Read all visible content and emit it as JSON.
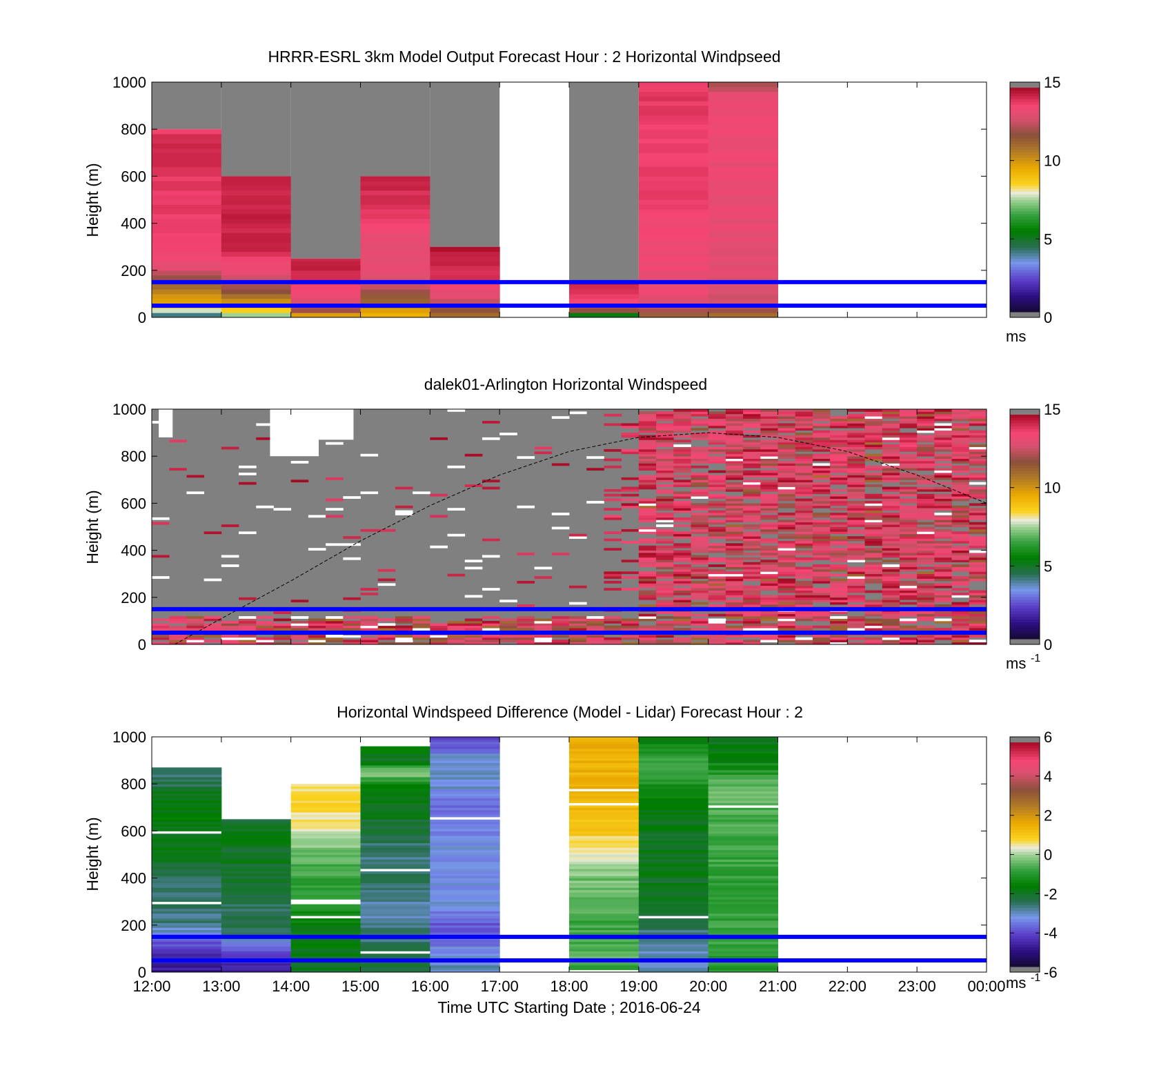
{
  "figure": {
    "xlabel": "Time UTC  Starting Date ; 2016-06-24",
    "xticks": [
      "12:00",
      "13:00",
      "14:00",
      "15:00",
      "16:00",
      "17:00",
      "18:00",
      "19:00",
      "20:00",
      "21:00",
      "22:00",
      "23:00",
      "00:00"
    ],
    "reference_lines_m": [
      50,
      150
    ],
    "reference_line_color": "#0000ff",
    "nodata_color": "#808080"
  },
  "chart_data": [
    {
      "type": "heatmap",
      "title": "HRRR-ESRL 3km Model Output   Forecast Hour : 2 Horizontal Windpseed",
      "ylabel": "Height (m)",
      "xlabel": "",
      "ylim": [
        0,
        1000
      ],
      "yticks": [
        "0",
        "200",
        "400",
        "600",
        "800",
        "1000"
      ],
      "colorbar": {
        "min": 0,
        "max": 15,
        "ticks": [
          "0",
          "5",
          "10",
          "15"
        ],
        "unit": "ms"
      },
      "bins_hours": [
        12,
        13,
        14,
        15,
        16,
        17,
        18,
        19,
        20
      ],
      "columns": [
        {
          "hour": 12,
          "top": 800,
          "profile": [
            [
              0,
              3
            ],
            [
              20,
              5
            ],
            [
              35,
              9
            ],
            [
              60,
              9.5
            ],
            [
              100,
              10.5
            ],
            [
              130,
              11
            ],
            [
              160,
              12
            ],
            [
              200,
              13
            ],
            [
              240,
              13.5
            ],
            [
              300,
              14
            ],
            [
              450,
              14
            ],
            [
              600,
              14
            ],
            [
              700,
              14.5
            ],
            [
              800,
              14
            ]
          ]
        },
        {
          "hour": 13,
          "top": 600,
          "profile": [
            [
              0,
              7
            ],
            [
              20,
              8
            ],
            [
              60,
              10
            ],
            [
              100,
              11.5
            ],
            [
              150,
              12.5
            ],
            [
              200,
              13.5
            ],
            [
              260,
              14
            ],
            [
              300,
              14.5
            ],
            [
              400,
              14.5
            ],
            [
              600,
              14.5
            ]
          ]
        },
        {
          "hour": 14,
          "top": 250,
          "profile": [
            [
              0,
              9
            ],
            [
              30,
              12
            ],
            [
              60,
              13
            ],
            [
              100,
              13.5
            ],
            [
              140,
              14
            ],
            [
              200,
              14.5
            ],
            [
              250,
              14.5
            ]
          ]
        },
        {
          "hour": 15,
          "top": 600,
          "profile": [
            [
              0,
              9
            ],
            [
              30,
              10
            ],
            [
              60,
              11
            ],
            [
              100,
              12
            ],
            [
              150,
              13
            ],
            [
              200,
              13.5
            ],
            [
              300,
              13.2
            ],
            [
              400,
              13.8
            ],
            [
              500,
              14.3
            ],
            [
              600,
              14.5
            ]
          ]
        },
        {
          "hour": 16,
          "top": 300,
          "profile": [
            [
              0,
              11
            ],
            [
              40,
              12
            ],
            [
              80,
              13
            ],
            [
              150,
              14
            ],
            [
              220,
              14.5
            ],
            [
              300,
              14.8
            ]
          ]
        },
        {
          "hour": 17,
          "top": null,
          "profile": []
        },
        {
          "hour": 18,
          "top": 150,
          "profile": [
            [
              0,
              2
            ],
            [
              30,
              12
            ],
            [
              80,
              14
            ],
            [
              150,
              14.5
            ]
          ]
        },
        {
          "hour": 19,
          "top": 1000,
          "profile": [
            [
              0,
              11
            ],
            [
              50,
              13
            ],
            [
              100,
              13.5
            ],
            [
              200,
              13.5
            ],
            [
              400,
              13.8
            ],
            [
              600,
              14
            ],
            [
              800,
              14
            ],
            [
              1000,
              14
            ]
          ]
        },
        {
          "hour": 20,
          "top": 1000,
          "profile": [
            [
              0,
              11
            ],
            [
              50,
              12.5
            ],
            [
              100,
              13
            ],
            [
              300,
              13.3
            ],
            [
              600,
              13.5
            ],
            [
              800,
              13.6
            ],
            [
              900,
              13.5
            ],
            [
              950,
              13.2
            ],
            [
              1000,
              12
            ]
          ]
        }
      ]
    },
    {
      "type": "heatmap",
      "title": "dalek01-Arlington  Horizontal Windspeed",
      "ylabel": "Height (m)",
      "xlabel": "",
      "ylim": [
        0,
        1000
      ],
      "yticks": [
        "0",
        "200",
        "400",
        "600",
        "800",
        "1000"
      ],
      "colorbar": {
        "min": 0,
        "max": 15,
        "ticks": [
          "0",
          "5",
          "10",
          "15"
        ],
        "unit": "ms",
        "unit_exp": "-1"
      },
      "overlay_curve": {
        "style": "dashed",
        "points": [
          [
            12.33,
            0
          ],
          [
            13.0,
            110
          ],
          [
            14.0,
            270
          ],
          [
            15.0,
            440
          ],
          [
            16.0,
            590
          ],
          [
            17.0,
            720
          ],
          [
            18.0,
            820
          ],
          [
            19.0,
            880
          ],
          [
            20.0,
            900
          ],
          [
            21.0,
            880
          ],
          [
            22.0,
            820
          ],
          [
            23.0,
            720
          ],
          [
            24.0,
            600
          ]
        ]
      }
    },
    {
      "type": "heatmap",
      "title": "Horizontal Windspeed Difference (Model - Lidar) Forecast Hour : 2",
      "ylabel": "Height (m)",
      "xlabel": "Time UTC  Starting Date ; 2016-06-24",
      "ylim": [
        0,
        1000
      ],
      "yticks": [
        "0",
        "200",
        "400",
        "600",
        "800",
        "1000"
      ],
      "colorbar": {
        "min": -6,
        "max": 6,
        "ticks": [
          "-6",
          "-4",
          "-2",
          "0",
          "2",
          "4",
          "6"
        ],
        "unit": "ms",
        "unit_exp": "-1"
      },
      "columns": [
        {
          "hour": 12,
          "top": 870,
          "profile": [
            [
              0,
              -5
            ],
            [
              100,
              -4.5
            ],
            [
              160,
              -3.5
            ],
            [
              200,
              -2.8
            ],
            [
              300,
              -2.7
            ],
            [
              400,
              -2.5
            ],
            [
              500,
              -2
            ],
            [
              600,
              -1.8
            ],
            [
              750,
              -1.8
            ],
            [
              800,
              -2.5
            ],
            [
              870,
              -2.7
            ]
          ]
        },
        {
          "hour": 13,
          "top": 650,
          "profile": [
            [
              0,
              -5
            ],
            [
              100,
              -4
            ],
            [
              160,
              -2.5
            ],
            [
              250,
              -2.6
            ],
            [
              400,
              -2.2
            ],
            [
              550,
              -2
            ],
            [
              650,
              -2.2
            ]
          ]
        },
        {
          "hour": 14,
          "top": 800,
          "profile": [
            [
              0,
              -2
            ],
            [
              150,
              -1.8
            ],
            [
              300,
              -1.2
            ],
            [
              400,
              -0.8
            ],
            [
              500,
              -0.5
            ],
            [
              600,
              0.3
            ],
            [
              700,
              0.8
            ],
            [
              800,
              0.5
            ]
          ]
        },
        {
          "hour": 15,
          "top": 960,
          "profile": [
            [
              0,
              -2.2
            ],
            [
              150,
              -2.8
            ],
            [
              300,
              -3
            ],
            [
              400,
              -2.5
            ],
            [
              500,
              -2.8
            ],
            [
              600,
              -2.3
            ],
            [
              700,
              -2
            ],
            [
              800,
              -1.5
            ],
            [
              850,
              0
            ],
            [
              900,
              -2
            ],
            [
              960,
              -1.8
            ]
          ]
        },
        {
          "hour": 16,
          "top": 1000,
          "profile": [
            [
              0,
              -3
            ],
            [
              150,
              -3.8
            ],
            [
              200,
              -4
            ],
            [
              300,
              -3.2
            ],
            [
              400,
              -3.5
            ],
            [
              500,
              -3.3
            ],
            [
              600,
              -3.6
            ],
            [
              700,
              -3.8
            ],
            [
              800,
              -3.2
            ],
            [
              900,
              -3.1
            ],
            [
              1000,
              -4.5
            ]
          ]
        },
        {
          "hour": 17,
          "top": null,
          "profile": []
        },
        {
          "hour": 18,
          "top": 1000,
          "profile": [
            [
              0,
              -1.5
            ],
            [
              50,
              -0.5
            ],
            [
              200,
              -0.8
            ],
            [
              400,
              -0.3
            ],
            [
              500,
              0.3
            ],
            [
              600,
              1
            ],
            [
              700,
              1.4
            ],
            [
              800,
              1.5
            ],
            [
              1000,
              1.6
            ]
          ]
        },
        {
          "hour": 19,
          "top": 1000,
          "profile": [
            [
              0,
              -3
            ],
            [
              150,
              -3
            ],
            [
              200,
              -2.4
            ],
            [
              400,
              -2
            ],
            [
              600,
              -2
            ],
            [
              700,
              -1.8
            ],
            [
              800,
              -1.2
            ],
            [
              900,
              -0.8
            ],
            [
              1000,
              -1.8
            ]
          ]
        },
        {
          "hour": 20,
          "top": 1000,
          "profile": [
            [
              0,
              -1
            ],
            [
              200,
              -0.8
            ],
            [
              400,
              -0.9
            ],
            [
              600,
              -0.7
            ],
            [
              800,
              -0.5
            ],
            [
              900,
              -1.6
            ],
            [
              1000,
              -2.0
            ]
          ]
        }
      ]
    }
  ]
}
